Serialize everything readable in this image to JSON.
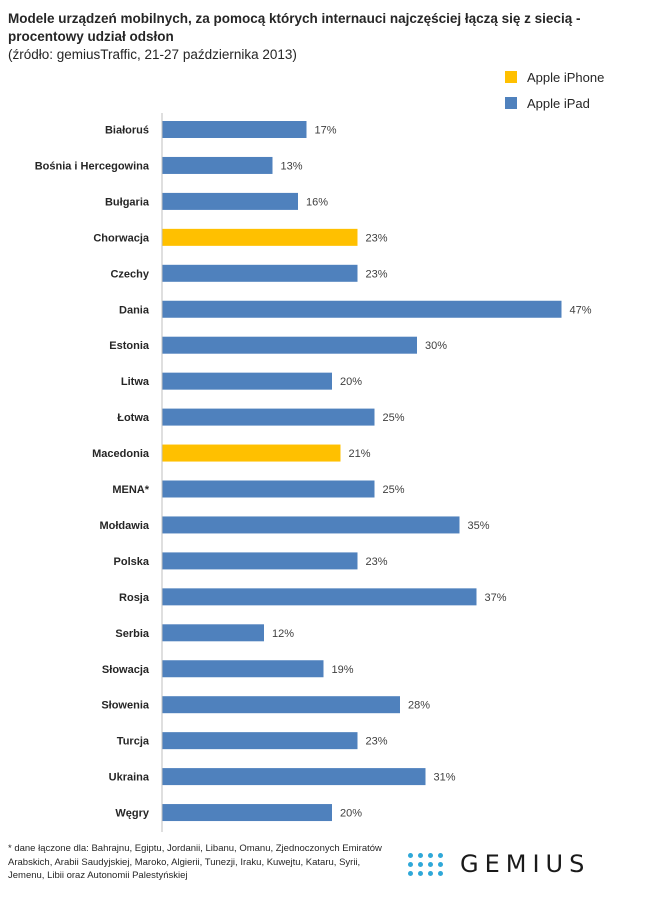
{
  "chart_data": {
    "type": "bar",
    "orientation": "horizontal",
    "title": "Modele urządzeń mobilnych, za pomocą których internauci najczęściej łączą się z siecią - procentowy udział odsłon",
    "source": "(źródło: gemiusTraffic, 21-27 października 2013)",
    "categories": [
      "Białoruś",
      "Bośnia i Hercegowina",
      "Bułgaria",
      "Chorwacja",
      "Czechy",
      "Dania",
      "Estonia",
      "Litwa",
      "Łotwa",
      "Macedonia",
      "MENA*",
      "Mołdawia",
      "Polska",
      "Rosja",
      "Serbia",
      "Słowacja",
      "Słowenia",
      "Turcja",
      "Ukraina",
      "Węgry"
    ],
    "values": [
      17,
      13,
      16,
      23,
      23,
      47,
      30,
      20,
      25,
      21,
      25,
      35,
      23,
      37,
      12,
      19,
      28,
      23,
      31,
      20
    ],
    "value_labels": [
      "17%",
      "13%",
      "16%",
      "23%",
      "23%",
      "47%",
      "30%",
      "20%",
      "25%",
      "21%",
      "25%",
      "35%",
      "23%",
      "37%",
      "12%",
      "19%",
      "28%",
      "23%",
      "31%",
      "20%"
    ],
    "bar_series": [
      "Apple iPad",
      "Apple iPad",
      "Apple iPad",
      "Apple iPhone",
      "Apple iPad",
      "Apple iPad",
      "Apple iPad",
      "Apple iPad",
      "Apple iPad",
      "Apple iPhone",
      "Apple iPad",
      "Apple iPad",
      "Apple iPad",
      "Apple iPad",
      "Apple iPad",
      "Apple iPad",
      "Apple iPad",
      "Apple iPad",
      "Apple iPad",
      "Apple iPad"
    ],
    "series": [
      {
        "name": "Apple iPhone",
        "color": "#ffc000"
      },
      {
        "name": "Apple iPad",
        "color": "#4f81bd"
      }
    ],
    "xlim": [
      0,
      50
    ],
    "grid": false,
    "legend_position": "top-right"
  },
  "footnote": "* dane łączone dla: Bahrajnu, Egiptu, Jordanii, Libanu, Omanu, Zjednoczonych Emiratów Arabskich, Arabii Saudyjskiej, Maroko, Algierii, Tunezji, Iraku, Kuwejtu, Kataru, Syrii, Jemenu, Libii oraz Autonomii Palestyńskiej",
  "logo": {
    "text": "GEMIUS",
    "icon": "dot-grid-logo-icon"
  }
}
